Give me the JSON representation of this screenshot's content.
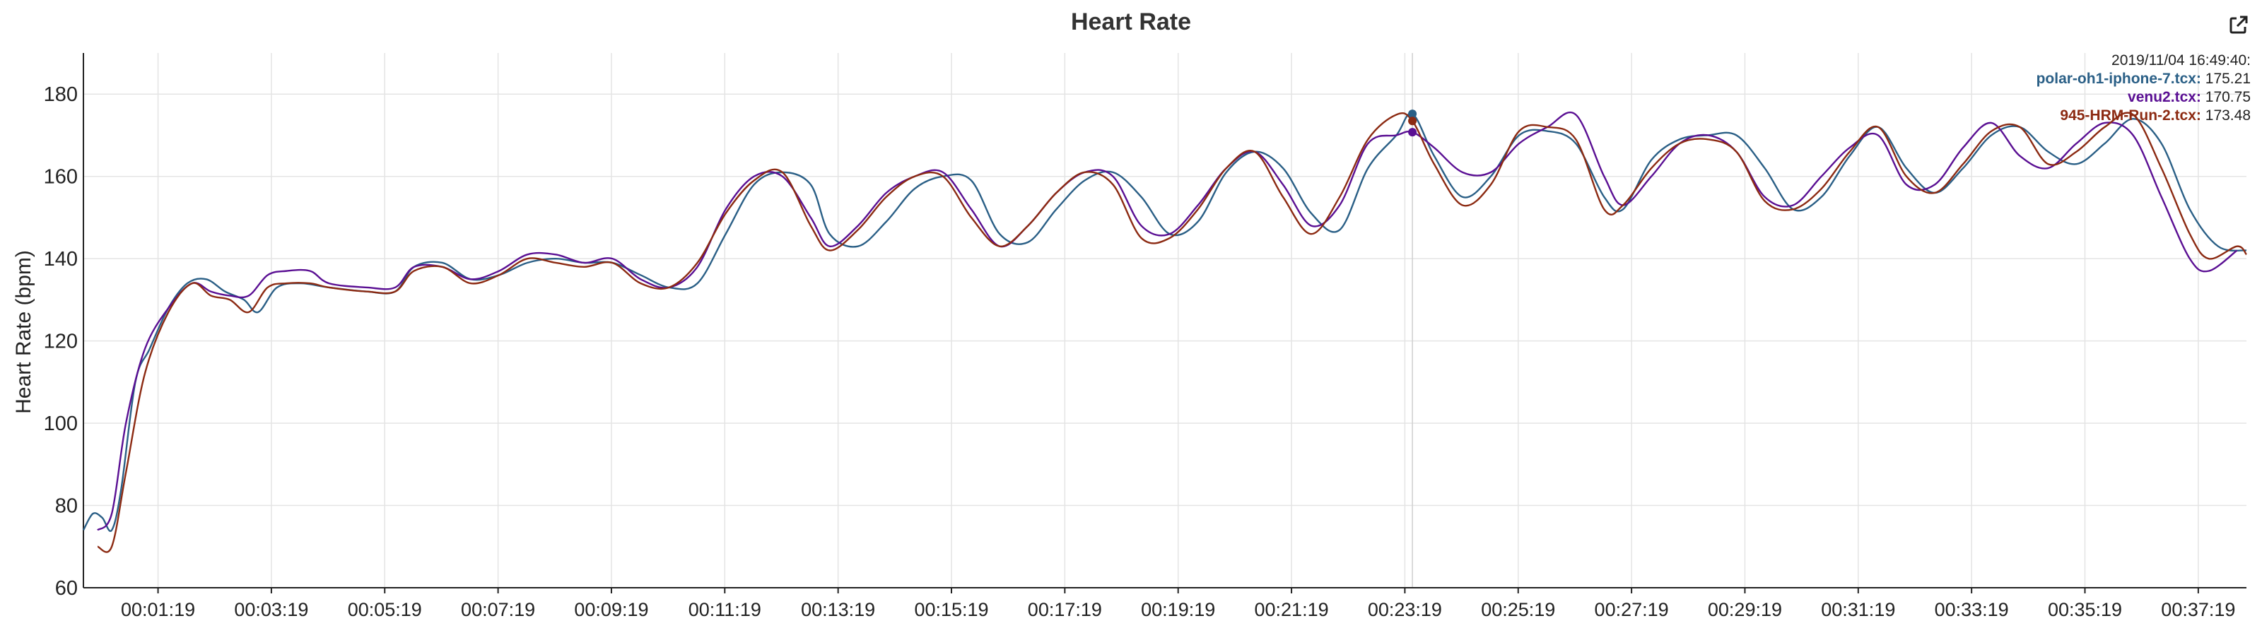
{
  "chart_data": {
    "type": "line",
    "title": "Heart Rate",
    "xlabel": "",
    "ylabel": "Heart Rate (bpm)",
    "ylim": [
      60,
      190
    ],
    "yticks": [
      60,
      80,
      100,
      120,
      140,
      160,
      180
    ],
    "xlim": [
      "00:00:00",
      "00:38:10"
    ],
    "xticks": [
      "00:01:19",
      "00:03:19",
      "00:05:19",
      "00:07:19",
      "00:09:19",
      "00:11:19",
      "00:13:19",
      "00:15:19",
      "00:17:19",
      "00:19:19",
      "00:21:19",
      "00:23:19",
      "00:25:19",
      "00:27:19",
      "00:29:19",
      "00:31:19",
      "00:33:19",
      "00:35:19",
      "00:37:19"
    ],
    "grid": true,
    "legend": "none",
    "series": [
      {
        "name": "polar-oh1-iphone-7.tcx",
        "color": "#2a5f86",
        "points": [
          [
            "00:00:00",
            74
          ],
          [
            "00:00:10",
            78
          ],
          [
            "00:00:20",
            77
          ],
          [
            "00:00:30",
            74
          ],
          [
            "00:00:40",
            84
          ],
          [
            "00:00:55",
            110
          ],
          [
            "00:01:10",
            118
          ],
          [
            "00:01:30",
            128
          ],
          [
            "00:01:50",
            134
          ],
          [
            "00:02:10",
            135
          ],
          [
            "00:02:30",
            132
          ],
          [
            "00:02:50",
            130
          ],
          [
            "00:03:05",
            127
          ],
          [
            "00:03:25",
            133
          ],
          [
            "00:03:50",
            134
          ],
          [
            "00:04:20",
            133
          ],
          [
            "00:05:00",
            132
          ],
          [
            "00:05:30",
            132
          ],
          [
            "00:05:50",
            138
          ],
          [
            "00:06:20",
            139
          ],
          [
            "00:06:50",
            135
          ],
          [
            "00:07:20",
            136
          ],
          [
            "00:07:50",
            139
          ],
          [
            "00:08:20",
            140
          ],
          [
            "00:08:50",
            139
          ],
          [
            "00:09:20",
            139
          ],
          [
            "00:09:50",
            136
          ],
          [
            "00:10:20",
            133
          ],
          [
            "00:10:50",
            134
          ],
          [
            "00:11:20",
            146
          ],
          [
            "00:11:50",
            158
          ],
          [
            "00:12:20",
            161
          ],
          [
            "00:12:50",
            158
          ],
          [
            "00:13:10",
            146
          ],
          [
            "00:13:40",
            143
          ],
          [
            "00:14:10",
            149
          ],
          [
            "00:14:40",
            157
          ],
          [
            "00:15:10",
            160
          ],
          [
            "00:15:40",
            159
          ],
          [
            "00:16:10",
            146
          ],
          [
            "00:16:40",
            144
          ],
          [
            "00:17:10",
            152
          ],
          [
            "00:17:40",
            159
          ],
          [
            "00:18:10",
            161
          ],
          [
            "00:18:40",
            155
          ],
          [
            "00:19:10",
            146
          ],
          [
            "00:19:40",
            149
          ],
          [
            "00:20:10",
            161
          ],
          [
            "00:20:40",
            166
          ],
          [
            "00:21:10",
            162
          ],
          [
            "00:21:40",
            151
          ],
          [
            "00:22:10",
            147
          ],
          [
            "00:22:40",
            162
          ],
          [
            "00:23:10",
            170
          ],
          [
            "00:23:27",
            175.21
          ],
          [
            "00:23:50",
            165
          ],
          [
            "00:24:20",
            155
          ],
          [
            "00:24:50",
            160
          ],
          [
            "00:25:20",
            170
          ],
          [
            "00:25:50",
            171
          ],
          [
            "00:26:20",
            168
          ],
          [
            "00:26:50",
            155
          ],
          [
            "00:27:10",
            152
          ],
          [
            "00:27:40",
            164
          ],
          [
            "00:28:10",
            169
          ],
          [
            "00:28:40",
            170
          ],
          [
            "00:29:10",
            170
          ],
          [
            "00:29:40",
            162
          ],
          [
            "00:30:10",
            152
          ],
          [
            "00:30:40",
            155
          ],
          [
            "00:31:10",
            165
          ],
          [
            "00:31:40",
            172
          ],
          [
            "00:32:10",
            162
          ],
          [
            "00:32:40",
            156
          ],
          [
            "00:33:10",
            162
          ],
          [
            "00:33:40",
            170
          ],
          [
            "00:34:10",
            172
          ],
          [
            "00:34:40",
            166
          ],
          [
            "00:35:10",
            163
          ],
          [
            "00:35:40",
            168
          ],
          [
            "00:36:10",
            174
          ],
          [
            "00:36:40",
            168
          ],
          [
            "00:37:10",
            152
          ],
          [
            "00:37:40",
            143
          ],
          [
            "00:38:10",
            142
          ]
        ]
      },
      {
        "name": "venu2.tcx",
        "color": "#5a0f93",
        "points": [
          [
            "00:00:15",
            74
          ],
          [
            "00:00:30",
            78
          ],
          [
            "00:00:45",
            100
          ],
          [
            "00:01:05",
            118
          ],
          [
            "00:01:30",
            128
          ],
          [
            "00:01:55",
            134
          ],
          [
            "00:02:15",
            132
          ],
          [
            "00:02:35",
            131
          ],
          [
            "00:02:55",
            131
          ],
          [
            "00:03:15",
            136
          ],
          [
            "00:03:35",
            137
          ],
          [
            "00:04:00",
            137
          ],
          [
            "00:04:20",
            134
          ],
          [
            "00:05:00",
            133
          ],
          [
            "00:05:30",
            133
          ],
          [
            "00:05:50",
            138
          ],
          [
            "00:06:20",
            138
          ],
          [
            "00:06:50",
            135
          ],
          [
            "00:07:20",
            137
          ],
          [
            "00:07:50",
            141
          ],
          [
            "00:08:20",
            141
          ],
          [
            "00:08:50",
            139
          ],
          [
            "00:09:20",
            140
          ],
          [
            "00:09:50",
            135
          ],
          [
            "00:10:20",
            133
          ],
          [
            "00:10:50",
            138
          ],
          [
            "00:11:20",
            152
          ],
          [
            "00:11:50",
            160
          ],
          [
            "00:12:20",
            160
          ],
          [
            "00:12:50",
            150
          ],
          [
            "00:13:10",
            143
          ],
          [
            "00:13:40",
            148
          ],
          [
            "00:14:10",
            156
          ],
          [
            "00:14:40",
            160
          ],
          [
            "00:15:10",
            161
          ],
          [
            "00:15:40",
            152
          ],
          [
            "00:16:10",
            143
          ],
          [
            "00:16:40",
            148
          ],
          [
            "00:17:10",
            156
          ],
          [
            "00:17:40",
            161
          ],
          [
            "00:18:10",
            160
          ],
          [
            "00:18:40",
            148
          ],
          [
            "00:19:10",
            146
          ],
          [
            "00:19:40",
            153
          ],
          [
            "00:20:10",
            162
          ],
          [
            "00:20:40",
            166
          ],
          [
            "00:21:10",
            158
          ],
          [
            "00:21:40",
            148
          ],
          [
            "00:22:10",
            153
          ],
          [
            "00:22:40",
            168
          ],
          [
            "00:23:10",
            170
          ],
          [
            "00:23:27",
            170.75
          ],
          [
            "00:23:50",
            167
          ],
          [
            "00:24:20",
            161
          ],
          [
            "00:24:50",
            161
          ],
          [
            "00:25:20",
            168
          ],
          [
            "00:25:50",
            172
          ],
          [
            "00:26:20",
            175
          ],
          [
            "00:26:50",
            160
          ],
          [
            "00:27:10",
            153
          ],
          [
            "00:27:40",
            160
          ],
          [
            "00:28:10",
            168
          ],
          [
            "00:28:40",
            170
          ],
          [
            "00:29:10",
            166
          ],
          [
            "00:29:40",
            155
          ],
          [
            "00:30:10",
            153
          ],
          [
            "00:30:40",
            160
          ],
          [
            "00:31:10",
            167
          ],
          [
            "00:31:40",
            170
          ],
          [
            "00:32:10",
            158
          ],
          [
            "00:32:40",
            158
          ],
          [
            "00:33:10",
            167
          ],
          [
            "00:33:40",
            173
          ],
          [
            "00:34:10",
            165
          ],
          [
            "00:34:40",
            162
          ],
          [
            "00:35:10",
            168
          ],
          [
            "00:35:40",
            173
          ],
          [
            "00:36:10",
            170
          ],
          [
            "00:36:40",
            155
          ],
          [
            "00:37:10",
            140
          ],
          [
            "00:37:30",
            137
          ],
          [
            "00:38:00",
            142
          ]
        ]
      },
      {
        "name": "945-HRM-Run-2.tcx",
        "color": "#8c2a12",
        "points": [
          [
            "00:00:15",
            70
          ],
          [
            "00:00:30",
            70
          ],
          [
            "00:00:45",
            88
          ],
          [
            "00:01:05",
            112
          ],
          [
            "00:01:30",
            127
          ],
          [
            "00:01:55",
            134
          ],
          [
            "00:02:15",
            131
          ],
          [
            "00:02:35",
            130
          ],
          [
            "00:02:55",
            127
          ],
          [
            "00:03:15",
            133
          ],
          [
            "00:03:35",
            134
          ],
          [
            "00:04:00",
            134
          ],
          [
            "00:04:20",
            133
          ],
          [
            "00:05:00",
            132
          ],
          [
            "00:05:30",
            132
          ],
          [
            "00:05:50",
            137
          ],
          [
            "00:06:20",
            138
          ],
          [
            "00:06:50",
            134
          ],
          [
            "00:07:20",
            136
          ],
          [
            "00:07:50",
            140
          ],
          [
            "00:08:20",
            139
          ],
          [
            "00:08:50",
            138
          ],
          [
            "00:09:20",
            139
          ],
          [
            "00:09:50",
            134
          ],
          [
            "00:10:20",
            133
          ],
          [
            "00:10:50",
            139
          ],
          [
            "00:11:20",
            151
          ],
          [
            "00:11:50",
            159
          ],
          [
            "00:12:20",
            161
          ],
          [
            "00:12:50",
            148
          ],
          [
            "00:13:10",
            142
          ],
          [
            "00:13:40",
            147
          ],
          [
            "00:14:10",
            155
          ],
          [
            "00:14:40",
            160
          ],
          [
            "00:15:10",
            160
          ],
          [
            "00:15:40",
            150
          ],
          [
            "00:16:10",
            143
          ],
          [
            "00:16:40",
            148
          ],
          [
            "00:17:10",
            156
          ],
          [
            "00:17:40",
            161
          ],
          [
            "00:18:10",
            158
          ],
          [
            "00:18:40",
            145
          ],
          [
            "00:19:10",
            145
          ],
          [
            "00:19:40",
            152
          ],
          [
            "00:20:10",
            162
          ],
          [
            "00:20:40",
            166
          ],
          [
            "00:21:10",
            155
          ],
          [
            "00:21:40",
            146
          ],
          [
            "00:22:10",
            155
          ],
          [
            "00:22:40",
            169
          ],
          [
            "00:23:10",
            175
          ],
          [
            "00:23:27",
            173.48
          ],
          [
            "00:23:50",
            163
          ],
          [
            "00:24:20",
            153
          ],
          [
            "00:24:50",
            158
          ],
          [
            "00:25:20",
            171
          ],
          [
            "00:25:50",
            172
          ],
          [
            "00:26:20",
            169
          ],
          [
            "00:26:50",
            152
          ],
          [
            "00:27:10",
            153
          ],
          [
            "00:27:40",
            162
          ],
          [
            "00:28:10",
            168
          ],
          [
            "00:28:40",
            169
          ],
          [
            "00:29:10",
            166
          ],
          [
            "00:29:40",
            154
          ],
          [
            "00:30:10",
            152
          ],
          [
            "00:30:40",
            157
          ],
          [
            "00:31:10",
            166
          ],
          [
            "00:31:40",
            172
          ],
          [
            "00:32:10",
            160
          ],
          [
            "00:32:40",
            156
          ],
          [
            "00:33:10",
            163
          ],
          [
            "00:33:40",
            171
          ],
          [
            "00:34:10",
            172
          ],
          [
            "00:34:40",
            163
          ],
          [
            "00:35:10",
            166
          ],
          [
            "00:35:40",
            172
          ],
          [
            "00:36:10",
            175
          ],
          [
            "00:36:40",
            162
          ],
          [
            "00:37:10",
            146
          ],
          [
            "00:37:30",
            140
          ],
          [
            "00:38:00",
            143
          ],
          [
            "00:38:10",
            141
          ]
        ]
      }
    ],
    "crosshair_x": "00:23:27",
    "tooltip": {
      "header": "2019/11/04 16:49:40:",
      "rows": [
        {
          "name": "polar-oh1-iphone-7.tcx:",
          "value": "175.21",
          "color": "#2a5f86"
        },
        {
          "name": "venu2.tcx:",
          "value": "170.75",
          "color": "#5a0f93"
        },
        {
          "name": "945-HRM-Run-2.tcx:",
          "value": "173.48",
          "color": "#8c2a12"
        }
      ]
    }
  },
  "toolbar": {
    "export_icon": "external-link-icon"
  }
}
